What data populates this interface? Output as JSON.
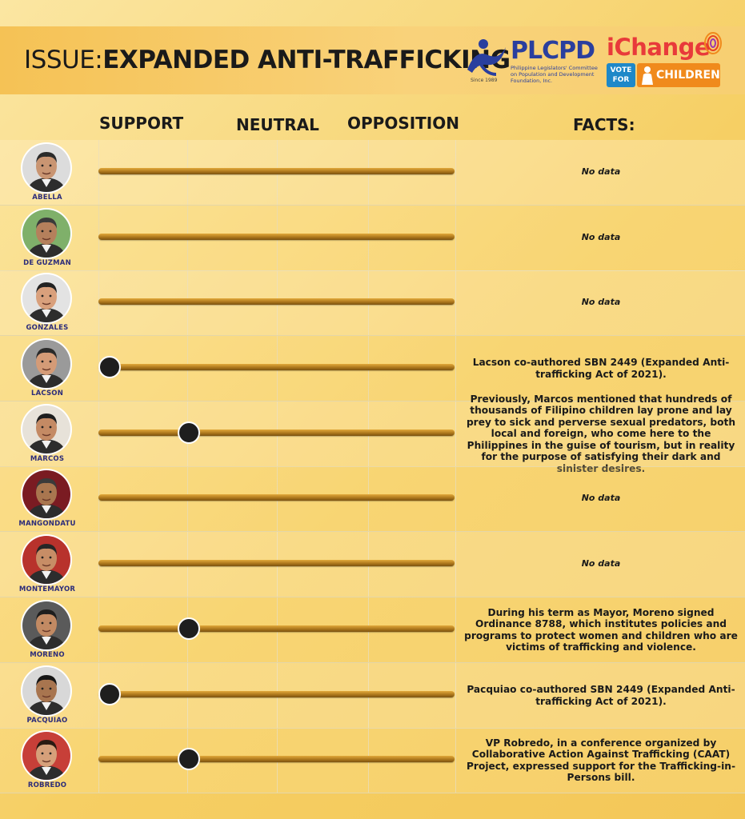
{
  "banner": {
    "title_prefix": "ISSUE:",
    "title_main": "EXPANDED ANTI-TRAFFICKING",
    "plcpd": {
      "name": "PLCPD",
      "subtitle": "Philippine Legislators' Committee on Population and Development Foundation, Inc.",
      "since": "Since 1989"
    },
    "ichange": {
      "word": "iChange",
      "vote_for": "VOTE FOR",
      "children": "CHILDREN"
    }
  },
  "columns": {
    "support": "SUPPORT",
    "neutral": "NEUTRAL",
    "opposition": "OPPOSITION",
    "facts": "FACTS:"
  },
  "colors": {
    "bar": "#b07a1e",
    "marker": "#1e1e1e",
    "name": "#2c2c7a",
    "plcpd_blue": "#2a3f9e",
    "ichange_red": "#e83a3a",
    "vote_blue": "#1e88c8",
    "children_orange": "#f08a1c"
  },
  "candidates": [
    {
      "name": "ABELLA",
      "position": null,
      "fact": "No data",
      "skin": "#c99572",
      "hair": "#2b2b2b",
      "bg": "#dcdcdc"
    },
    {
      "name": "DE GUZMAN",
      "position": null,
      "fact": "No data",
      "skin": "#b5805c",
      "hair": "#3a3a3a",
      "bg": "#7fb06a"
    },
    {
      "name": "GONZALES",
      "position": null,
      "fact": "No data",
      "skin": "#d9a07c",
      "hair": "#222222",
      "bg": "#e3e3e3"
    },
    {
      "name": "LACSON",
      "position": 0.0,
      "fact": "Lacson co-authored SBN 2449 (Expanded Anti-trafficking Act of 2021).",
      "skin": "#d49b77",
      "hair": "#2a2a2a",
      "bg": "#9a9a9a"
    },
    {
      "name": "MARCOS",
      "position": 0.25,
      "fact": "Previously, Marcos mentioned that hundreds of thousands of Filipino children lay prone and lay prey to sick and perverse sexual predators, both local and foreign, who come here to the Philippines in the guise of tourism, but in reality for the purpose of satisfying their dark and sinister desires.",
      "skin": "#c48a64",
      "hair": "#1e1e1e",
      "bg": "#e7e2d9"
    },
    {
      "name": "MANGONDATU",
      "position": null,
      "fact": "No data",
      "skin": "#a9764f",
      "hair": "#3a3a3a",
      "bg": "#7a1b22"
    },
    {
      "name": "MONTEMAYOR",
      "position": null,
      "fact": "No data",
      "skin": "#c78d66",
      "hair": "#262626",
      "bg": "#b8322c"
    },
    {
      "name": "MORENO",
      "position": 0.25,
      "fact": "During his term as Mayor, Moreno signed Ordinance 8788, which institutes policies and programs to protect women and children who are victims of trafficking and violence.",
      "skin": "#c28a63",
      "hair": "#1d1d1d",
      "bg": "#5a5a5a"
    },
    {
      "name": "PACQUIAO",
      "position": 0.0,
      "fact": "Pacquiao co-authored SBN 2449 (Expanded Anti-trafficking Act of 2021).",
      "skin": "#a8754f",
      "hair": "#161616",
      "bg": "#d8d8d8"
    },
    {
      "name": "ROBREDO",
      "position": 0.25,
      "fact": "VP Robredo, in a conference organized by Collaborative Action Against Trafficking (CAAT) Project, expressed support for the Trafficking-in-Persons bill.",
      "skin": "#d6a07a",
      "hair": "#2a1a12",
      "bg": "#c73f38"
    }
  ]
}
